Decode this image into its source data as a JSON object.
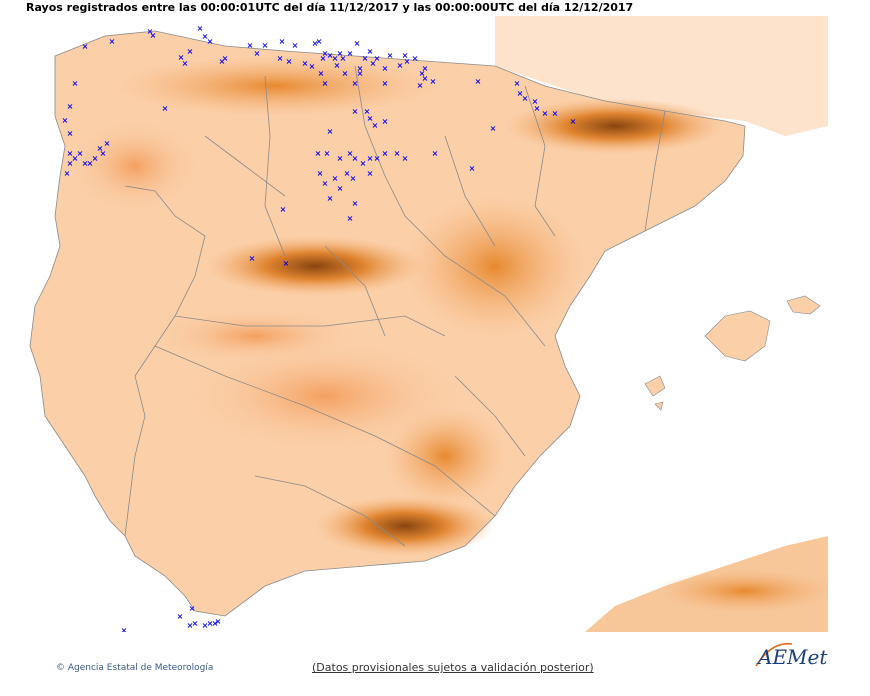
{
  "header": {
    "title": "Rayos registrados entre las 00:00:01UTC del día 11/12/2017 y las 00:00:00UTC del día 12/12/2017"
  },
  "footer": {
    "agency_label": "Agencia Estatal de Meteorología",
    "copyright_symbol": "©",
    "disclaimer": "(Datos provisionales sujetos a validación posterior)"
  },
  "logo": {
    "wordmark": "AEMet",
    "subtitle": "Agencia Estatal de Meteorología",
    "colors": {
      "primary": "#1a3f7a",
      "accent": "#e06a1a"
    }
  },
  "map": {
    "colors": {
      "sea": "#ffffff",
      "land_low": "#fde3cc",
      "land_mid": "#f7b37a",
      "land_high": "#e7892f",
      "land_peak": "#8a4510",
      "borders": "#8a8a8a",
      "lightning_marker": "#0000ff"
    },
    "marker_symbol": "×"
  }
}
